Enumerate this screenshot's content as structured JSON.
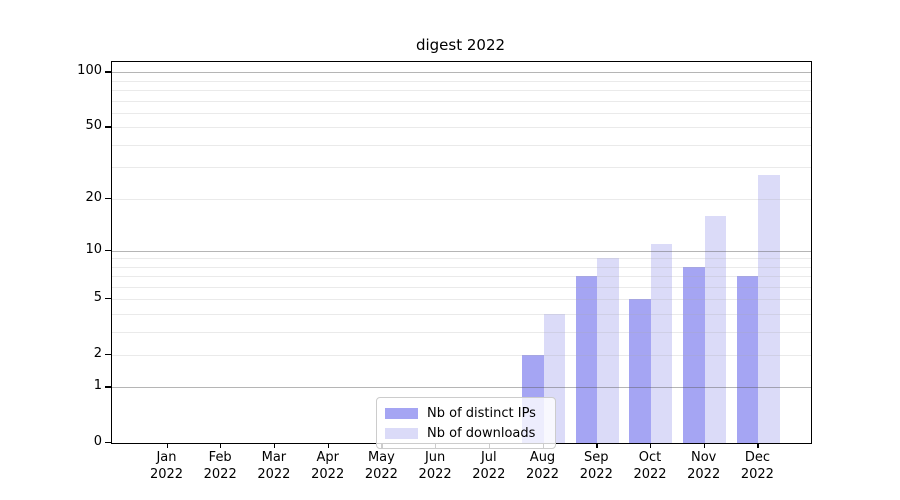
{
  "figure": {
    "title": "digest 2022",
    "background": "#ffffff"
  },
  "chart_data": {
    "type": "bar",
    "title": "digest 2022",
    "xlabel": "",
    "ylabel": "",
    "x_tick_months": [
      "Jan",
      "Feb",
      "Mar",
      "Apr",
      "May",
      "Jun",
      "Jul",
      "Aug",
      "Sep",
      "Oct",
      "Nov",
      "Dec"
    ],
    "x_tick_year": "2022",
    "categories": [
      "Jan 2022",
      "Feb 2022",
      "Mar 2022",
      "Apr 2022",
      "May 2022",
      "Jun 2022",
      "Jul 2022",
      "Aug 2022",
      "Sep 2022",
      "Oct 2022",
      "Nov 2022",
      "Dec 2022"
    ],
    "series": [
      {
        "name": "Nb of distinct IPs",
        "color": "#a5a5f3",
        "values": [
          0,
          0,
          0,
          0,
          0,
          0,
          0,
          2,
          7,
          5,
          8,
          7
        ]
      },
      {
        "name": "Nb of downloads",
        "color": "#dbdbf8",
        "values": [
          0,
          0,
          0,
          0,
          0,
          0,
          0,
          4,
          9,
          11,
          16,
          27
        ]
      }
    ],
    "yscale": "log1p",
    "ylim": [
      0,
      114
    ],
    "y_tick_labels": [
      "100",
      "50",
      "20",
      "10",
      "5",
      "2",
      "1",
      "0"
    ],
    "y_tick_values": [
      100,
      50,
      20,
      10,
      5,
      2,
      1,
      0
    ],
    "y_minor_gridlines": [
      2,
      3,
      4,
      5,
      6,
      7,
      8,
      9,
      20,
      30,
      40,
      50,
      60,
      70,
      80,
      90
    ],
    "y_major_gridlines": [
      1,
      10,
      100
    ],
    "grid": true,
    "legend_position": "lower center",
    "colors": {
      "grid_major": "#b0b0b0",
      "grid_minor": "#e8e8e8",
      "axis": "#000000",
      "legend_border": "#cccccc"
    }
  }
}
